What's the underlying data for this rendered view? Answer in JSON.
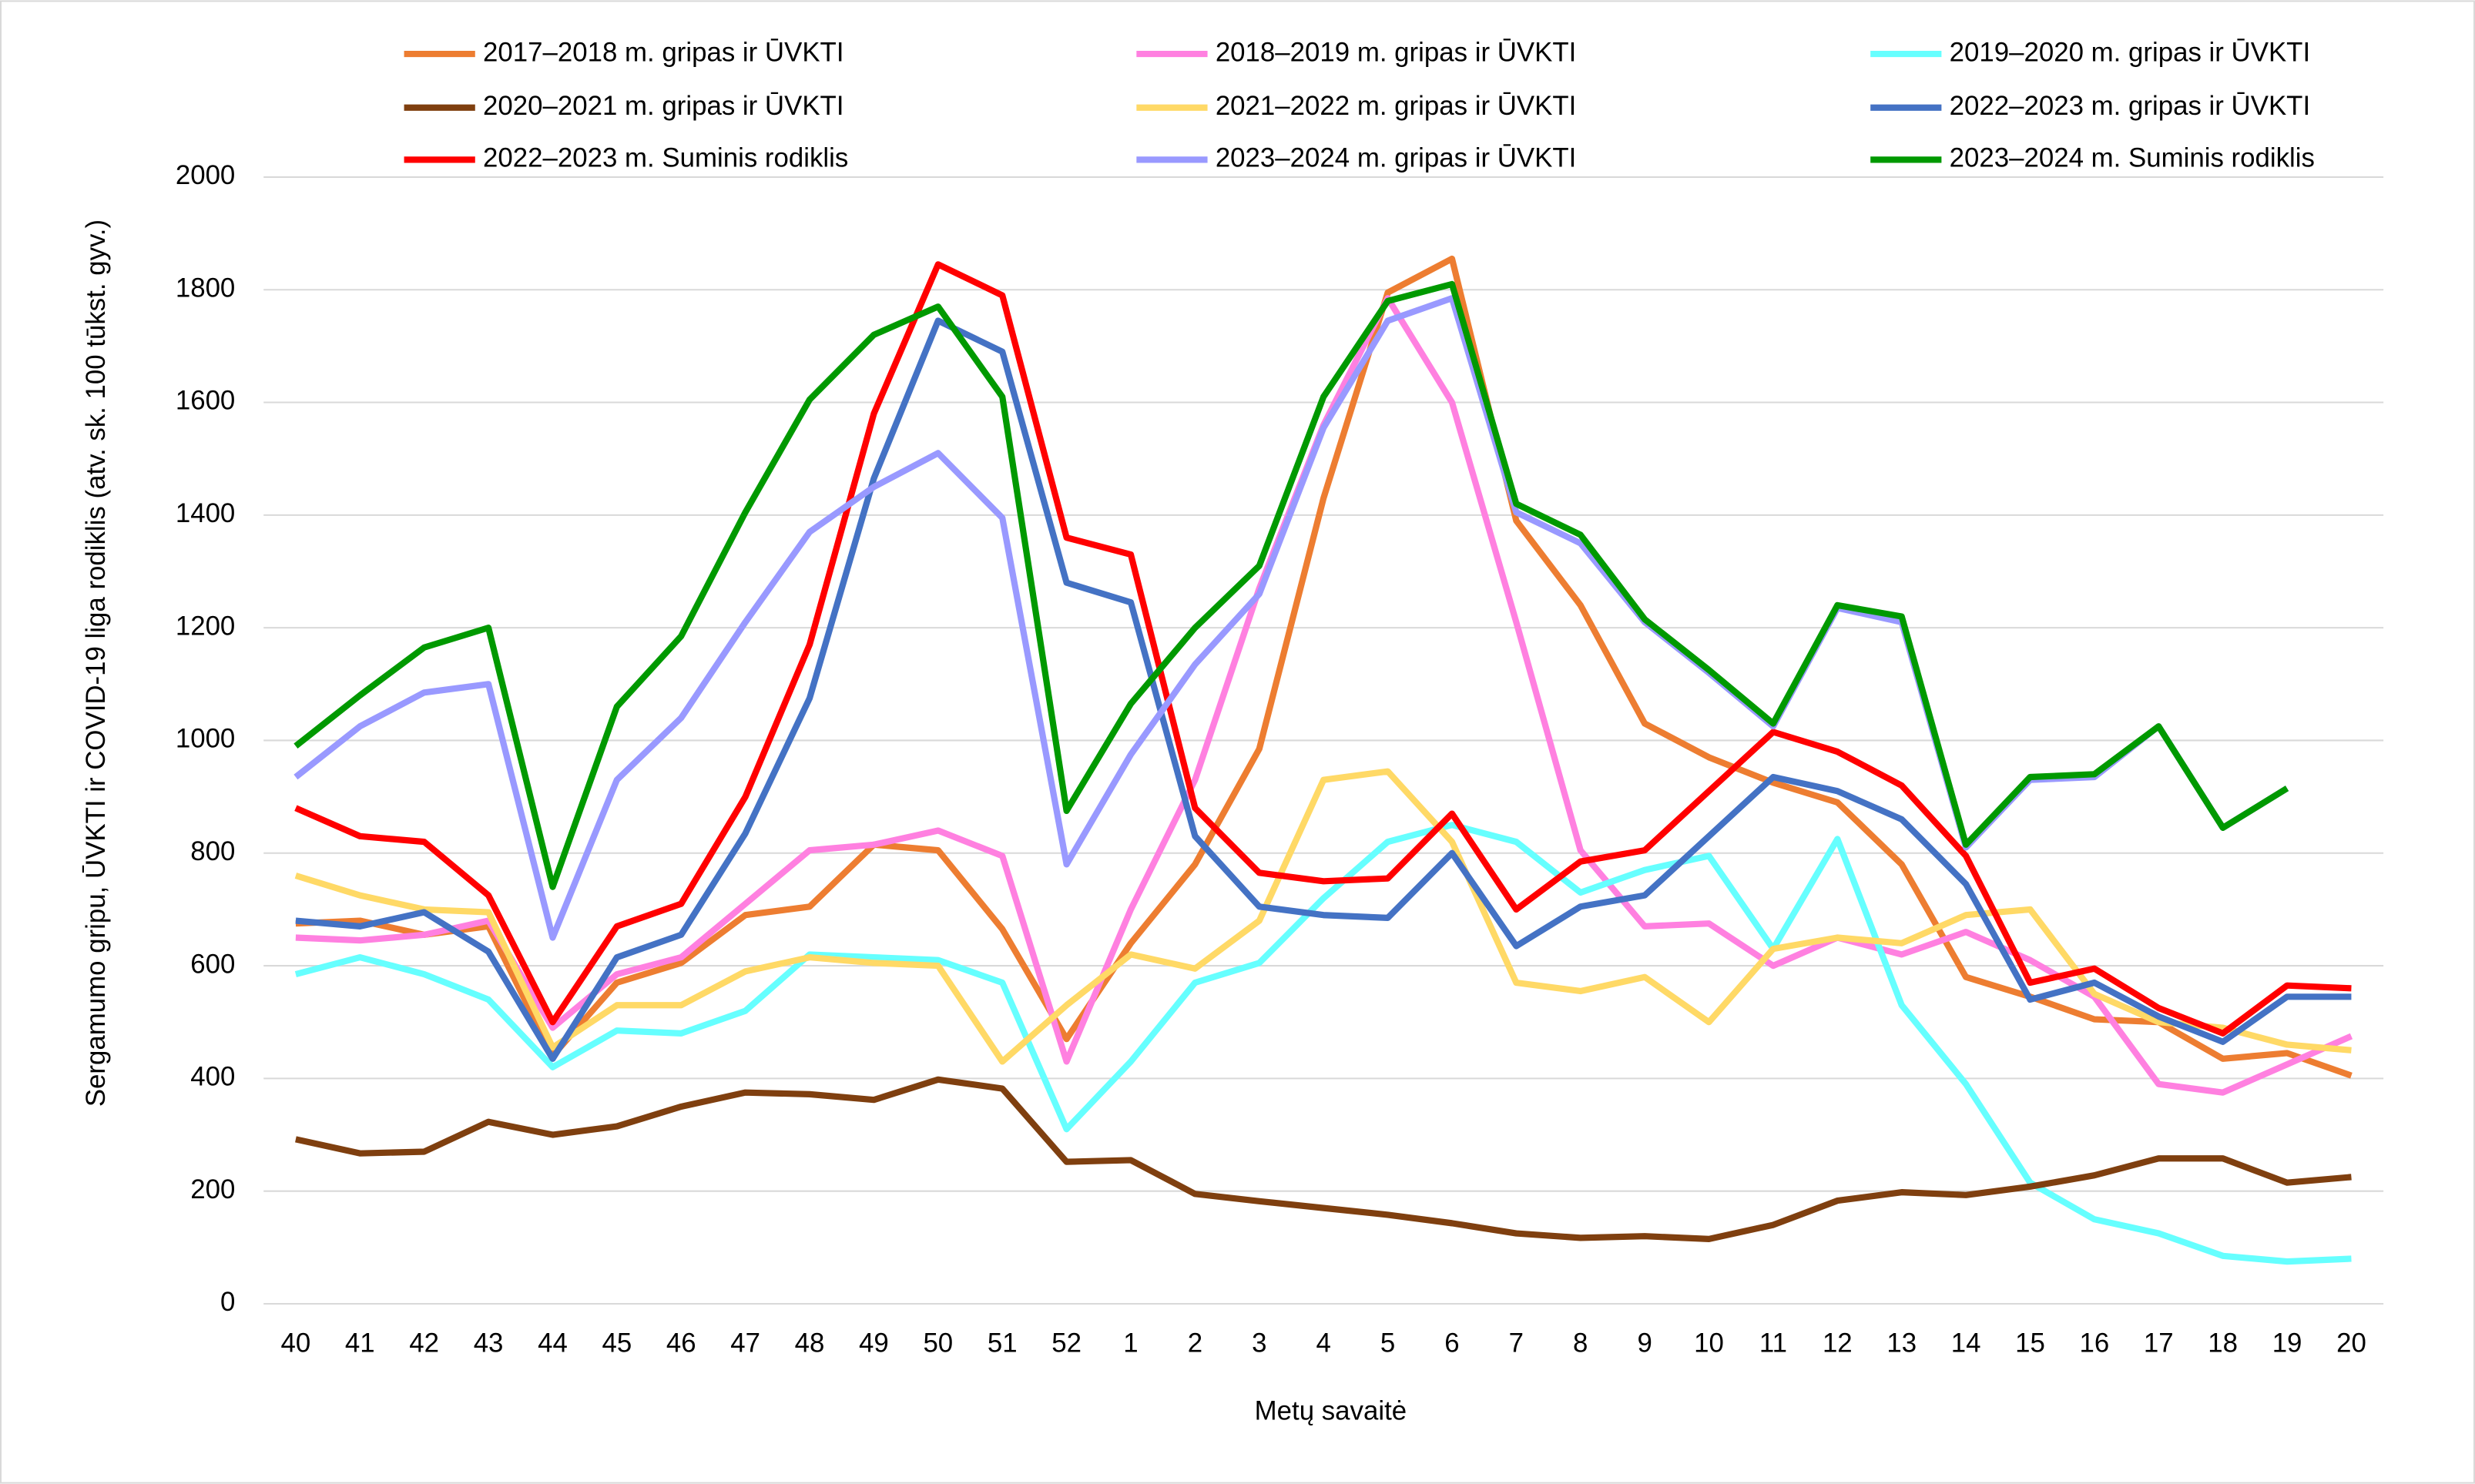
{
  "chart_data": {
    "type": "line",
    "ylabel": "Sergamumo gripu, ŪVKTI  ir COVID-19 liga rodiklis (atv. sk.  100 tūkst. gyv.)",
    "xlabel": "Metų savaitė",
    "categories": [
      "40",
      "41",
      "42",
      "43",
      "44",
      "45",
      "46",
      "47",
      "48",
      "49",
      "50",
      "51",
      "52",
      "1",
      "2",
      "3",
      "4",
      "5",
      "6",
      "7",
      "8",
      "9",
      "10",
      "11",
      "12",
      "13",
      "14",
      "15",
      "16",
      "17",
      "18",
      "19",
      "20"
    ],
    "ylim": [
      0,
      2000
    ],
    "yticks": [
      0,
      200,
      400,
      600,
      800,
      1000,
      1200,
      1400,
      1600,
      1800,
      2000
    ],
    "grid": true,
    "legend": "top",
    "series": [
      {
        "name": "2017–2018 m. gripas ir ŪVKTI",
        "color": "#ED7D31",
        "values": [
          675,
          680,
          655,
          670,
          440,
          570,
          605,
          690,
          705,
          815,
          805,
          665,
          470,
          640,
          780,
          985,
          1430,
          1795,
          1855,
          1390,
          1240,
          1030,
          970,
          925,
          890,
          780,
          580,
          545,
          505,
          500,
          435,
          445,
          405
        ]
      },
      {
        "name": "2018–2019 m. gripas ir ŪVKTI",
        "color": "#FF80E0",
        "values": [
          650,
          645,
          655,
          680,
          490,
          585,
          615,
          710,
          805,
          815,
          840,
          795,
          430,
          700,
          930,
          1270,
          1560,
          1785,
          1600,
          1210,
          805,
          670,
          675,
          600,
          650,
          620,
          660,
          610,
          545,
          390,
          375,
          425,
          475
        ]
      },
      {
        "name": "2019–2020 m. gripas ir ŪVKTI",
        "color": "#66FFFF",
        "values": [
          585,
          615,
          585,
          540,
          420,
          485,
          480,
          520,
          620,
          615,
          610,
          570,
          310,
          430,
          570,
          605,
          720,
          820,
          850,
          820,
          730,
          770,
          795,
          630,
          825,
          530,
          390,
          215,
          150,
          125,
          85,
          75,
          80
        ]
      },
      {
        "name": "2020–2021 m. gripas ir ŪVKTI",
        "color": "#7F3F0F",
        "values": [
          292,
          267,
          270,
          323,
          300,
          315,
          350,
          375,
          372,
          362,
          398,
          382,
          252,
          255,
          195,
          182,
          170,
          158,
          143,
          125,
          117,
          120,
          115,
          140,
          183,
          198,
          193,
          208,
          228,
          258,
          258,
          215,
          225
        ]
      },
      {
        "name": "2021–2022 m. gripas ir ŪVKTI",
        "color": "#FFD966",
        "values": [
          760,
          725,
          700,
          695,
          455,
          530,
          530,
          590,
          615,
          605,
          600,
          430,
          530,
          620,
          595,
          680,
          930,
          945,
          820,
          570,
          555,
          580,
          500,
          630,
          650,
          640,
          690,
          700,
          550,
          500,
          490,
          460,
          450
        ]
      },
      {
        "name": "2022–2023 m. gripas ir ŪVKTI",
        "color": "#4472C4",
        "values": [
          680,
          670,
          695,
          625,
          435,
          615,
          655,
          835,
          1075,
          1465,
          1745,
          1690,
          1280,
          1245,
          830,
          705,
          690,
          685,
          800,
          635,
          705,
          725,
          830,
          935,
          910,
          860,
          745,
          540,
          570,
          510,
          465,
          545,
          545
        ]
      },
      {
        "name": "2022–2023 m. Suminis rodiklis",
        "color": "#FF0000",
        "values": [
          880,
          830,
          820,
          725,
          500,
          670,
          710,
          900,
          1170,
          1580,
          1845,
          1790,
          1360,
          1330,
          880,
          765,
          750,
          755,
          870,
          700,
          785,
          805,
          910,
          1015,
          980,
          920,
          795,
          570,
          595,
          525,
          480,
          565,
          560
        ]
      },
      {
        "name": "2023–2024 m. gripas ir ŪVKTI",
        "color": "#9999FF",
        "values": [
          935,
          1025,
          1085,
          1100,
          650,
          930,
          1040,
          1210,
          1370,
          1450,
          1510,
          1395,
          780,
          975,
          1135,
          1260,
          1555,
          1745,
          1785,
          1405,
          1350,
          1210,
          1120,
          1025,
          1235,
          1210,
          810,
          930,
          935,
          1025,
          845,
          915,
          null
        ]
      },
      {
        "name": "2023–2024 m. Suminis rodiklis",
        "color": "#009900",
        "values": [
          990,
          1080,
          1165,
          1200,
          740,
          1060,
          1185,
          1405,
          1605,
          1720,
          1770,
          1610,
          875,
          1065,
          1200,
          1310,
          1610,
          1780,
          1810,
          1420,
          1365,
          1215,
          1125,
          1030,
          1240,
          1220,
          815,
          935,
          940,
          1025,
          845,
          915,
          null
        ]
      }
    ]
  }
}
